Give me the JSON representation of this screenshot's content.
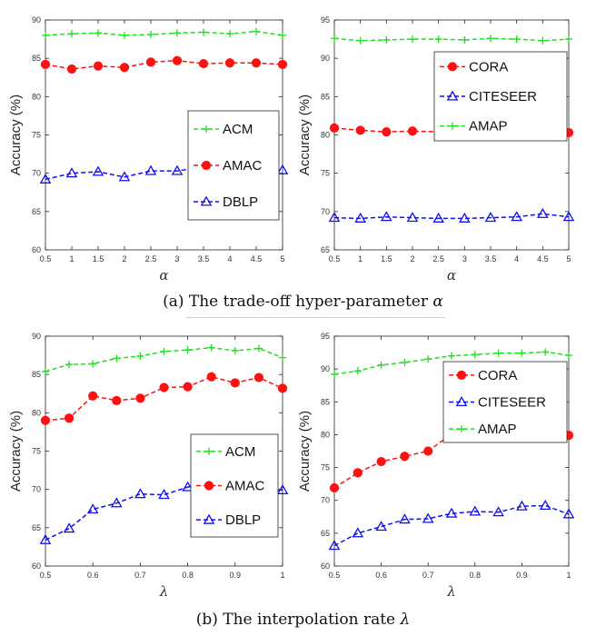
{
  "captions": {
    "a_text": "(a) The trade-off hyper-parameter ",
    "a_symbol": "α",
    "b_text": "(b) The interpolation rate ",
    "b_symbol": "λ"
  },
  "colors": {
    "ACM": "#22dd22",
    "AMAC": "#ff1111",
    "DBLP": "#1111ee",
    "CORA": "#ff1111",
    "CITESEER": "#1111ee",
    "AMAP": "#22dd22"
  },
  "chart_data": [
    {
      "type": "line",
      "panel": "a-left",
      "xlabel": "α",
      "ylabel": "Accuracy (%)",
      "x": [
        0.5,
        1,
        1.5,
        2,
        2.5,
        3,
        3.5,
        4,
        4.5,
        5
      ],
      "xticks": [
        "0.5",
        "1",
        "1.5",
        "2",
        "2.5",
        "3",
        "3.5",
        "4",
        "4.5",
        "5"
      ],
      "xlim": [
        0.5,
        5
      ],
      "ylim": [
        60,
        90
      ],
      "yticks": [
        "60",
        "65",
        "70",
        "75",
        "80",
        "85",
        "90"
      ],
      "legend_position": "center-right",
      "series": [
        {
          "name": "ACM",
          "marker": "plus",
          "values": [
            88.0,
            88.2,
            88.3,
            88.0,
            88.1,
            88.3,
            88.4,
            88.2,
            88.5,
            88.0
          ]
        },
        {
          "name": "AMAC",
          "marker": "circle",
          "values": [
            84.2,
            83.6,
            84.0,
            83.8,
            84.5,
            84.7,
            84.3,
            84.4,
            84.4,
            84.2
          ]
        },
        {
          "name": "DBLP",
          "marker": "triangle",
          "values": [
            69.2,
            70.0,
            70.2,
            69.5,
            70.3,
            70.3,
            70.8,
            70.6,
            70.5,
            70.4
          ]
        }
      ]
    },
    {
      "type": "line",
      "panel": "a-right",
      "xlabel": "α",
      "ylabel": "Accuracy (%)",
      "x": [
        0.5,
        1,
        1.5,
        2,
        2.5,
        3,
        3.5,
        4,
        4.5,
        5
      ],
      "xticks": [
        "0.5",
        "1",
        "1.5",
        "2",
        "2.5",
        "3",
        "3.5",
        "4",
        "4.5",
        "5"
      ],
      "xlim": [
        0.5,
        5
      ],
      "ylim": [
        65,
        95
      ],
      "yticks": [
        "65",
        "70",
        "75",
        "80",
        "85",
        "90",
        "95"
      ],
      "legend_position": "top-right",
      "series": [
        {
          "name": "CORA",
          "marker": "circle",
          "values": [
            80.9,
            80.6,
            80.4,
            80.5,
            80.4,
            80.0,
            80.2,
            80.4,
            80.5,
            80.3
          ]
        },
        {
          "name": "CITESEER",
          "marker": "triangle",
          "values": [
            69.2,
            69.1,
            69.3,
            69.2,
            69.1,
            69.1,
            69.2,
            69.3,
            69.7,
            69.3
          ]
        },
        {
          "name": "AMAP",
          "marker": "plus",
          "values": [
            92.6,
            92.3,
            92.4,
            92.5,
            92.5,
            92.4,
            92.6,
            92.5,
            92.3,
            92.5
          ]
        }
      ]
    },
    {
      "type": "line",
      "panel": "b-left",
      "xlabel": "λ",
      "ylabel": "Accuracy (%)",
      "x": [
        0.5,
        0.55,
        0.6,
        0.65,
        0.7,
        0.75,
        0.8,
        0.85,
        0.9,
        0.95,
        1
      ],
      "xticks": [
        "0.5",
        "0.6",
        "0.7",
        "0.8",
        "0.9",
        "1"
      ],
      "xlim": [
        0.5,
        1
      ],
      "ylim": [
        60,
        90
      ],
      "yticks": [
        "60",
        "65",
        "70",
        "75",
        "80",
        "85",
        "90"
      ],
      "legend_position": "center-right",
      "series": [
        {
          "name": "ACM",
          "marker": "plus",
          "values": [
            85.4,
            86.3,
            86.4,
            87.1,
            87.4,
            88.0,
            88.2,
            88.5,
            88.1,
            88.4,
            87.2
          ]
        },
        {
          "name": "AMAC",
          "marker": "circle",
          "values": [
            79.0,
            79.3,
            82.2,
            81.6,
            81.9,
            83.3,
            83.4,
            84.7,
            83.9,
            84.6,
            83.2
          ]
        },
        {
          "name": "DBLP",
          "marker": "triangle",
          "values": [
            63.4,
            64.9,
            67.4,
            68.2,
            69.4,
            69.3,
            70.3,
            71.1,
            70.4,
            70.2,
            69.9
          ]
        }
      ]
    },
    {
      "type": "line",
      "panel": "b-right",
      "xlabel": "λ",
      "ylabel": "Accuracy (%)",
      "x": [
        0.5,
        0.55,
        0.6,
        0.65,
        0.7,
        0.75,
        0.8,
        0.85,
        0.9,
        0.95,
        1
      ],
      "xticks": [
        "0.5",
        "0.6",
        "0.7",
        "0.8",
        "0.9",
        "1"
      ],
      "xlim": [
        0.5,
        1
      ],
      "ylim": [
        60,
        95
      ],
      "yticks": [
        "60",
        "65",
        "70",
        "75",
        "80",
        "85",
        "90",
        "95"
      ],
      "legend_position": "top-right",
      "series": [
        {
          "name": "CORA",
          "marker": "circle",
          "values": [
            71.9,
            74.2,
            75.9,
            76.7,
            77.5,
            80.1,
            80.0,
            80.1,
            80.8,
            80.7,
            79.9
          ]
        },
        {
          "name": "CITESEER",
          "marker": "triangle",
          "values": [
            63.1,
            65.0,
            66.0,
            67.1,
            67.2,
            68.0,
            68.3,
            68.2,
            69.1,
            69.2,
            67.9
          ]
        },
        {
          "name": "AMAP",
          "marker": "plus",
          "values": [
            89.2,
            89.7,
            90.6,
            91.0,
            91.5,
            92.0,
            92.2,
            92.4,
            92.4,
            92.6,
            92.1
          ]
        }
      ]
    }
  ]
}
